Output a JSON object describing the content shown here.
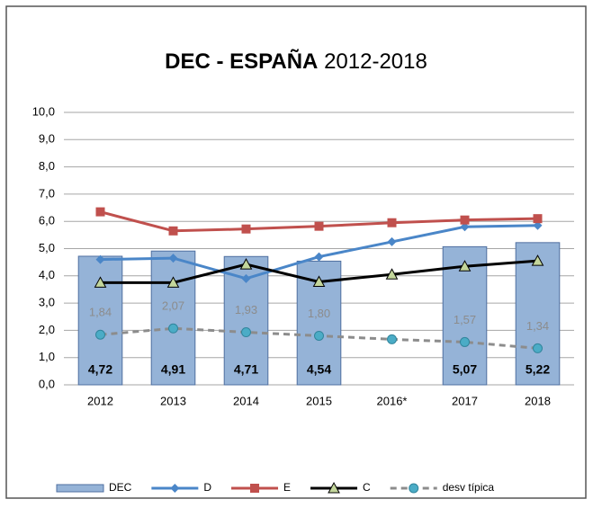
{
  "chart_data": {
    "type": "bar-line",
    "title_bold": "DEC - ESPAÑA",
    "title_rest": "2012-2018",
    "categories": [
      "2012",
      "2013",
      "2014",
      "2015",
      "2016*",
      "2017",
      "2018"
    ],
    "ylim": [
      0,
      10
    ],
    "yticks": [
      {
        "value": 0,
        "label": "0,0"
      },
      {
        "value": 1,
        "label": "1,0"
      },
      {
        "value": 2,
        "label": "2,0"
      },
      {
        "value": 3,
        "label": "3,0"
      },
      {
        "value": 4,
        "label": "4,0"
      },
      {
        "value": 5,
        "label": "5,0"
      },
      {
        "value": 6,
        "label": "6,0"
      },
      {
        "value": 7,
        "label": "7,0"
      },
      {
        "value": 8,
        "label": "8,0"
      },
      {
        "value": 9,
        "label": "9,0"
      },
      {
        "value": 10,
        "label": "10,0"
      }
    ],
    "grid": true,
    "series": [
      {
        "name": "DEC",
        "kind": "bar",
        "color": "#95b3d7",
        "values": [
          4.72,
          4.91,
          4.71,
          4.54,
          null,
          5.07,
          5.22
        ],
        "value_labels": [
          "4,72",
          "4,91",
          "4,71",
          "4,54",
          null,
          "5,07",
          "5,22"
        ]
      },
      {
        "name": "D",
        "kind": "line",
        "marker": "diamond",
        "color": "#4a86c8",
        "values": [
          4.6,
          4.65,
          3.9,
          4.7,
          5.25,
          5.8,
          5.85
        ]
      },
      {
        "name": "E",
        "kind": "line",
        "marker": "square",
        "color": "#c0504d",
        "values": [
          6.35,
          5.65,
          5.72,
          5.82,
          5.95,
          6.05,
          6.1
        ]
      },
      {
        "name": "C",
        "kind": "line",
        "marker": "triangle",
        "color": "#000000",
        "values": [
          3.75,
          3.75,
          4.42,
          3.78,
          4.05,
          4.35,
          4.55
        ]
      },
      {
        "name": "desv típica",
        "kind": "dashed",
        "marker": "circle",
        "color": "#8c8c8c",
        "values": [
          1.84,
          2.07,
          1.93,
          1.8,
          1.67,
          1.57,
          1.34
        ],
        "value_labels": [
          "1,84",
          "2,07",
          "1,93",
          "1,80",
          null,
          "1,57",
          "1,34"
        ]
      }
    ]
  }
}
